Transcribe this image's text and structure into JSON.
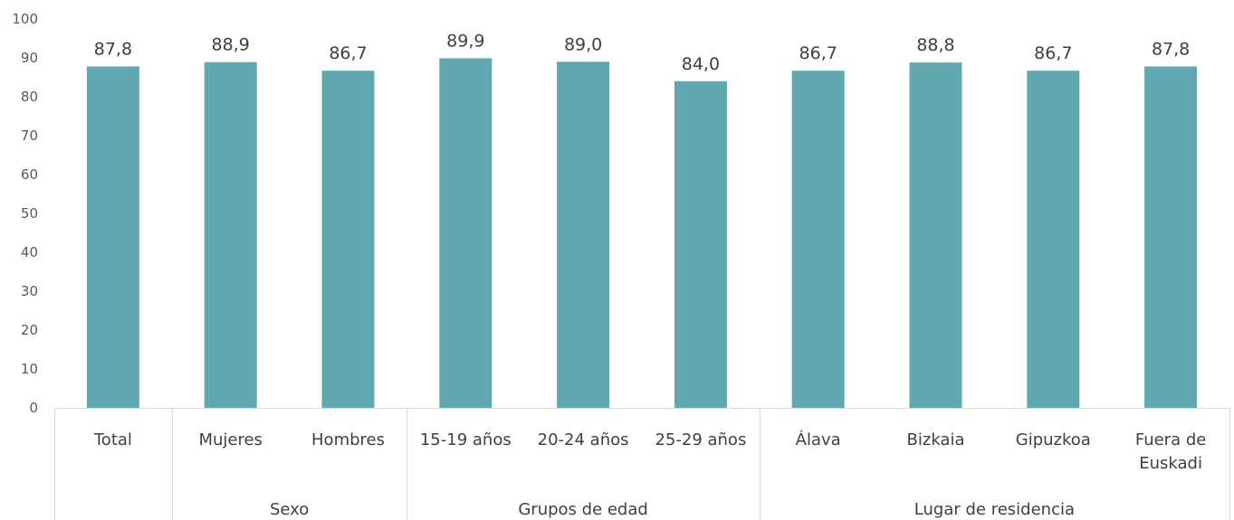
{
  "chart_data": {
    "type": "bar",
    "title": "",
    "xlabel": "",
    "ylabel": "",
    "ylim": [
      0,
      100
    ],
    "yticks": [
      0,
      10,
      20,
      30,
      40,
      50,
      60,
      70,
      80,
      90,
      100
    ],
    "grid": false,
    "legend": "none",
    "bar_color": "#62a8b1",
    "categories": [
      [
        "Total"
      ],
      [
        "Mujeres"
      ],
      [
        "Hombres"
      ],
      [
        "15-19 años"
      ],
      [
        "20-24 años"
      ],
      [
        "25-29 años"
      ],
      [
        "Álava"
      ],
      [
        "Bizkaia"
      ],
      [
        "Gipuzkoa"
      ],
      [
        "Fuera de",
        "Euskadi"
      ]
    ],
    "values": [
      87.8,
      88.9,
      86.7,
      89.9,
      89.0,
      84.0,
      86.7,
      88.8,
      86.7,
      87.8
    ],
    "data_labels": [
      "87,8",
      "88,9",
      "86,7",
      "89,9",
      "89,0",
      "84,0",
      "86,7",
      "88,8",
      "86,7",
      "87,8"
    ],
    "groups": [
      {
        "label": "",
        "start": 0,
        "count": 1
      },
      {
        "label": "Sexo",
        "start": 1,
        "count": 2
      },
      {
        "label": "Grupos de edad",
        "start": 3,
        "count": 3
      },
      {
        "label": "Lugar de residencia",
        "start": 6,
        "count": 4
      }
    ]
  }
}
